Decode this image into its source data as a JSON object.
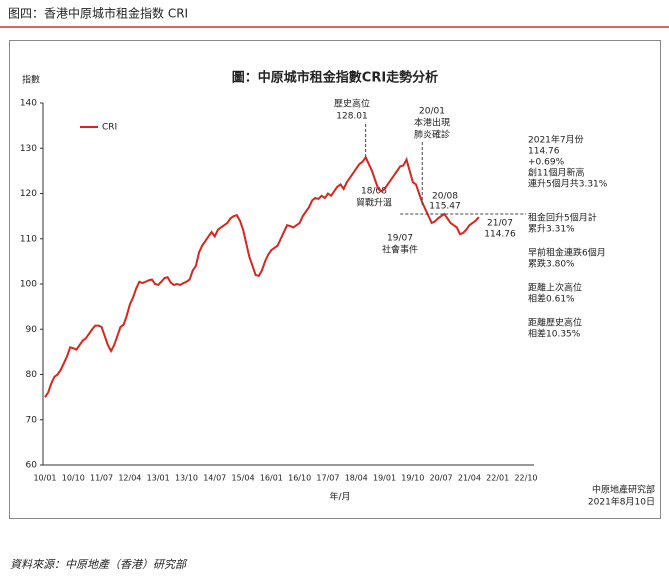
{
  "header": {
    "title": "图四：香港中原城市租金指数 CRI"
  },
  "chart_data": {
    "type": "line",
    "title": "圖：中原城市租金指數CRI走勢分析",
    "ylabel": "指數",
    "xlabel": "年/月",
    "categories": [
      "10/01",
      null,
      null,
      null,
      null,
      null,
      null,
      null,
      null,
      "10/10",
      null,
      null,
      null,
      null,
      null,
      null,
      null,
      null,
      "11/07",
      null,
      null,
      null,
      null,
      null,
      null,
      null,
      null,
      "12/04",
      null,
      null,
      null,
      null,
      null,
      null,
      null,
      null,
      "13/01",
      null,
      null,
      null,
      null,
      null,
      null,
      null,
      null,
      "13/10",
      null,
      null,
      null,
      null,
      null,
      null,
      null,
      null,
      "14/07",
      null,
      null,
      null,
      null,
      null,
      null,
      null,
      null,
      "15/04",
      null,
      null,
      null,
      null,
      null,
      null,
      null,
      null,
      "16/01",
      null,
      null,
      null,
      null,
      null,
      null,
      null,
      null,
      "16/10",
      null,
      null,
      null,
      null,
      null,
      null,
      null,
      null,
      "17/07",
      null,
      null,
      null,
      null,
      null,
      null,
      null,
      null,
      "18/04",
      null,
      null,
      null,
      null,
      null,
      null,
      null,
      null,
      "19/01",
      null,
      null,
      null,
      null,
      null,
      null,
      null,
      null,
      "19/10",
      null,
      null,
      null,
      null,
      null,
      null,
      null,
      null,
      "20/07",
      null,
      null,
      null,
      null,
      null,
      null,
      null,
      null,
      "21/04",
      null,
      null,
      null,
      null,
      null,
      null,
      null,
      null,
      "22/01",
      null,
      null,
      null,
      null,
      null,
      null,
      null,
      null,
      "22/10"
    ],
    "series": [
      {
        "name": "CRI",
        "color": "#d9261c",
        "values": [
          75.0,
          76,
          78,
          79.5,
          80,
          81,
          82.5,
          84,
          86,
          85.8,
          85.5,
          86.5,
          87.5,
          88,
          89,
          90,
          90.8,
          90.8,
          90.5,
          88.5,
          86.5,
          85.2,
          86.5,
          88.5,
          90.5,
          91,
          93,
          95.5,
          97,
          99,
          100.5,
          100.2,
          100.5,
          100.8,
          101,
          100,
          99.8,
          100.5,
          101.3,
          101.5,
          100.3,
          99.8,
          100,
          99.8,
          100.2,
          100.5,
          101,
          103,
          104,
          107,
          108.5,
          109.5,
          110.5,
          111.5,
          110.5,
          112,
          112.5,
          113,
          113.5,
          114.5,
          115,
          115.2,
          114,
          112,
          109,
          106,
          104,
          102,
          101.8,
          103,
          105,
          106.5,
          107.5,
          108,
          108.5,
          110,
          111.5,
          113,
          112.8,
          112.5,
          113,
          113.5,
          115,
          116,
          117,
          118.5,
          119,
          118.8,
          119.5,
          119,
          120,
          119.5,
          120.5,
          121.5,
          122,
          121,
          122.5,
          123.5,
          124.5,
          125.5,
          126.5,
          127,
          128.01,
          126.5,
          125,
          123,
          121,
          120.5,
          121,
          122,
          123,
          124,
          125,
          126,
          126.2,
          127.5,
          125,
          122.5,
          122,
          120,
          118,
          116.5,
          115,
          113.5,
          113.8,
          114.5,
          115,
          115.47,
          114.5,
          113.5,
          113,
          112.5,
          111,
          111.3,
          112,
          113,
          113.5,
          114,
          114.76,
          null,
          null,
          null,
          null,
          null,
          null,
          null,
          null,
          null,
          null,
          null,
          null,
          null,
          null,
          null
        ]
      }
    ],
    "ylim": [
      60,
      140
    ],
    "yticks": [
      60,
      70,
      80,
      90,
      100,
      110,
      120,
      130,
      140
    ],
    "grid": false,
    "annotations": [
      {
        "lines": [
          "歷史高位",
          "128.01"
        ]
      },
      {
        "lines": [
          "18/08",
          "貿戰升溫"
        ]
      },
      {
        "lines": [
          "19/07",
          "社會事件"
        ]
      },
      {
        "lines": [
          "20/01",
          "本港出現",
          "肺炎確診"
        ]
      },
      {
        "lines": [
          "20/08",
          "115.47"
        ]
      },
      {
        "lines": [
          "21/07",
          "114.76"
        ]
      }
    ],
    "notes": [
      [
        "2021年7月份",
        "114.76",
        "+0.69%",
        "創11個月新高",
        "連升5個月共3.31%"
      ],
      [
        "租金回升5個月計",
        "累升3.31%"
      ],
      [
        "早前租金連跌6個月",
        "累跌3.80%"
      ],
      [
        "距離上次高位",
        "相差0.61%"
      ],
      [
        "距離歷史高位",
        "相差10.35%"
      ]
    ],
    "footer": [
      "中原地產研究部",
      "2021年8月10日"
    ]
  },
  "source": "資料來源：中原地產（香港）研究部"
}
